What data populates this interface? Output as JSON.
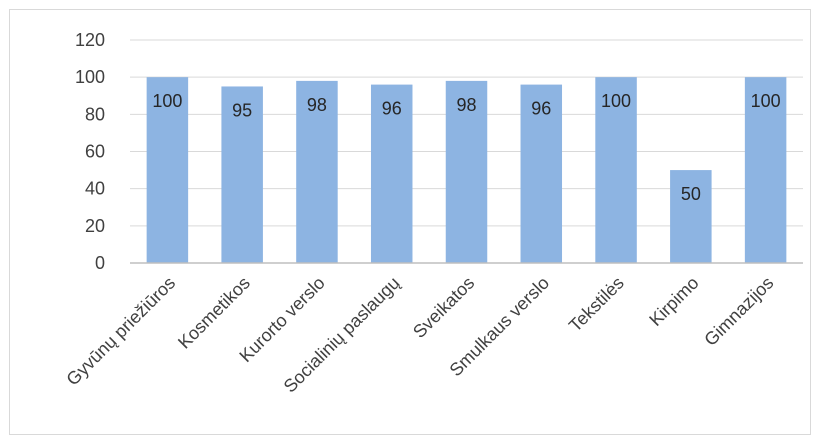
{
  "chart_data": {
    "type": "bar",
    "title": "",
    "xlabel": "",
    "ylabel": "",
    "categories": [
      "Gyvūnų priežiūros",
      "Kosmetikos",
      "Kurorto verslo",
      "Socialinių paslaugų",
      "Sveikatos",
      "Smulkaus verslo",
      "Tekstilės",
      "Kirpimo",
      "Gimnazijos"
    ],
    "values": [
      100,
      95,
      98,
      96,
      98,
      96,
      100,
      50,
      100
    ],
    "ylim": [
      0,
      120
    ],
    "yticks": [
      0,
      20,
      40,
      60,
      80,
      100,
      120
    ],
    "grid": true,
    "legend": "none",
    "data_labels": true,
    "colors": {
      "bar": "#8db4e2",
      "gridline": "#d9d9d9",
      "axis": "#bfbfbf",
      "text": "#404040"
    }
  }
}
